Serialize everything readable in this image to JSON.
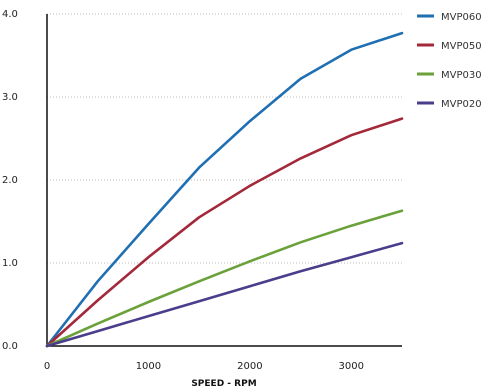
{
  "chart_data": {
    "type": "line",
    "title": "",
    "xlabel": "SPEED - RPM",
    "ylabel": "",
    "xlim": [
      0,
      3500
    ],
    "ylim": [
      0,
      4.0
    ],
    "x_ticks": [
      0,
      1000,
      2000,
      3000
    ],
    "x_tick_labels": [
      "0",
      "1000",
      "2000",
      "3000"
    ],
    "y_ticks": [
      0,
      1,
      2,
      3,
      4
    ],
    "y_tick_labels": [
      "0.0",
      "1.0",
      "2.0",
      "3.0",
      "4.0"
    ],
    "grid": "horizontal",
    "legend_position": "right",
    "series": [
      {
        "name": "MVP060",
        "color": "#1f6fb2",
        "x": [
          0,
          500,
          1000,
          1500,
          2000,
          2500,
          3000,
          3500
        ],
        "y": [
          0,
          0.78,
          1.47,
          2.15,
          2.71,
          3.22,
          3.57,
          3.77
        ]
      },
      {
        "name": "MVP050",
        "color": "#a3283a",
        "x": [
          0,
          500,
          1000,
          1500,
          2000,
          2500,
          3000,
          3500
        ],
        "y": [
          0,
          0.55,
          1.07,
          1.55,
          1.93,
          2.26,
          2.54,
          2.74
        ]
      },
      {
        "name": "MVP030",
        "color": "#6aa13a",
        "x": [
          0,
          500,
          1000,
          1500,
          2000,
          2500,
          3000,
          3500
        ],
        "y": [
          0,
          0.27,
          0.53,
          0.78,
          1.02,
          1.25,
          1.45,
          1.63
        ]
      },
      {
        "name": "MVP020",
        "color": "#4a3e8c",
        "x": [
          0,
          500,
          1000,
          1500,
          2000,
          2500,
          3000,
          3500
        ],
        "y": [
          0,
          0.18,
          0.36,
          0.54,
          0.72,
          0.9,
          1.07,
          1.24
        ]
      }
    ]
  }
}
